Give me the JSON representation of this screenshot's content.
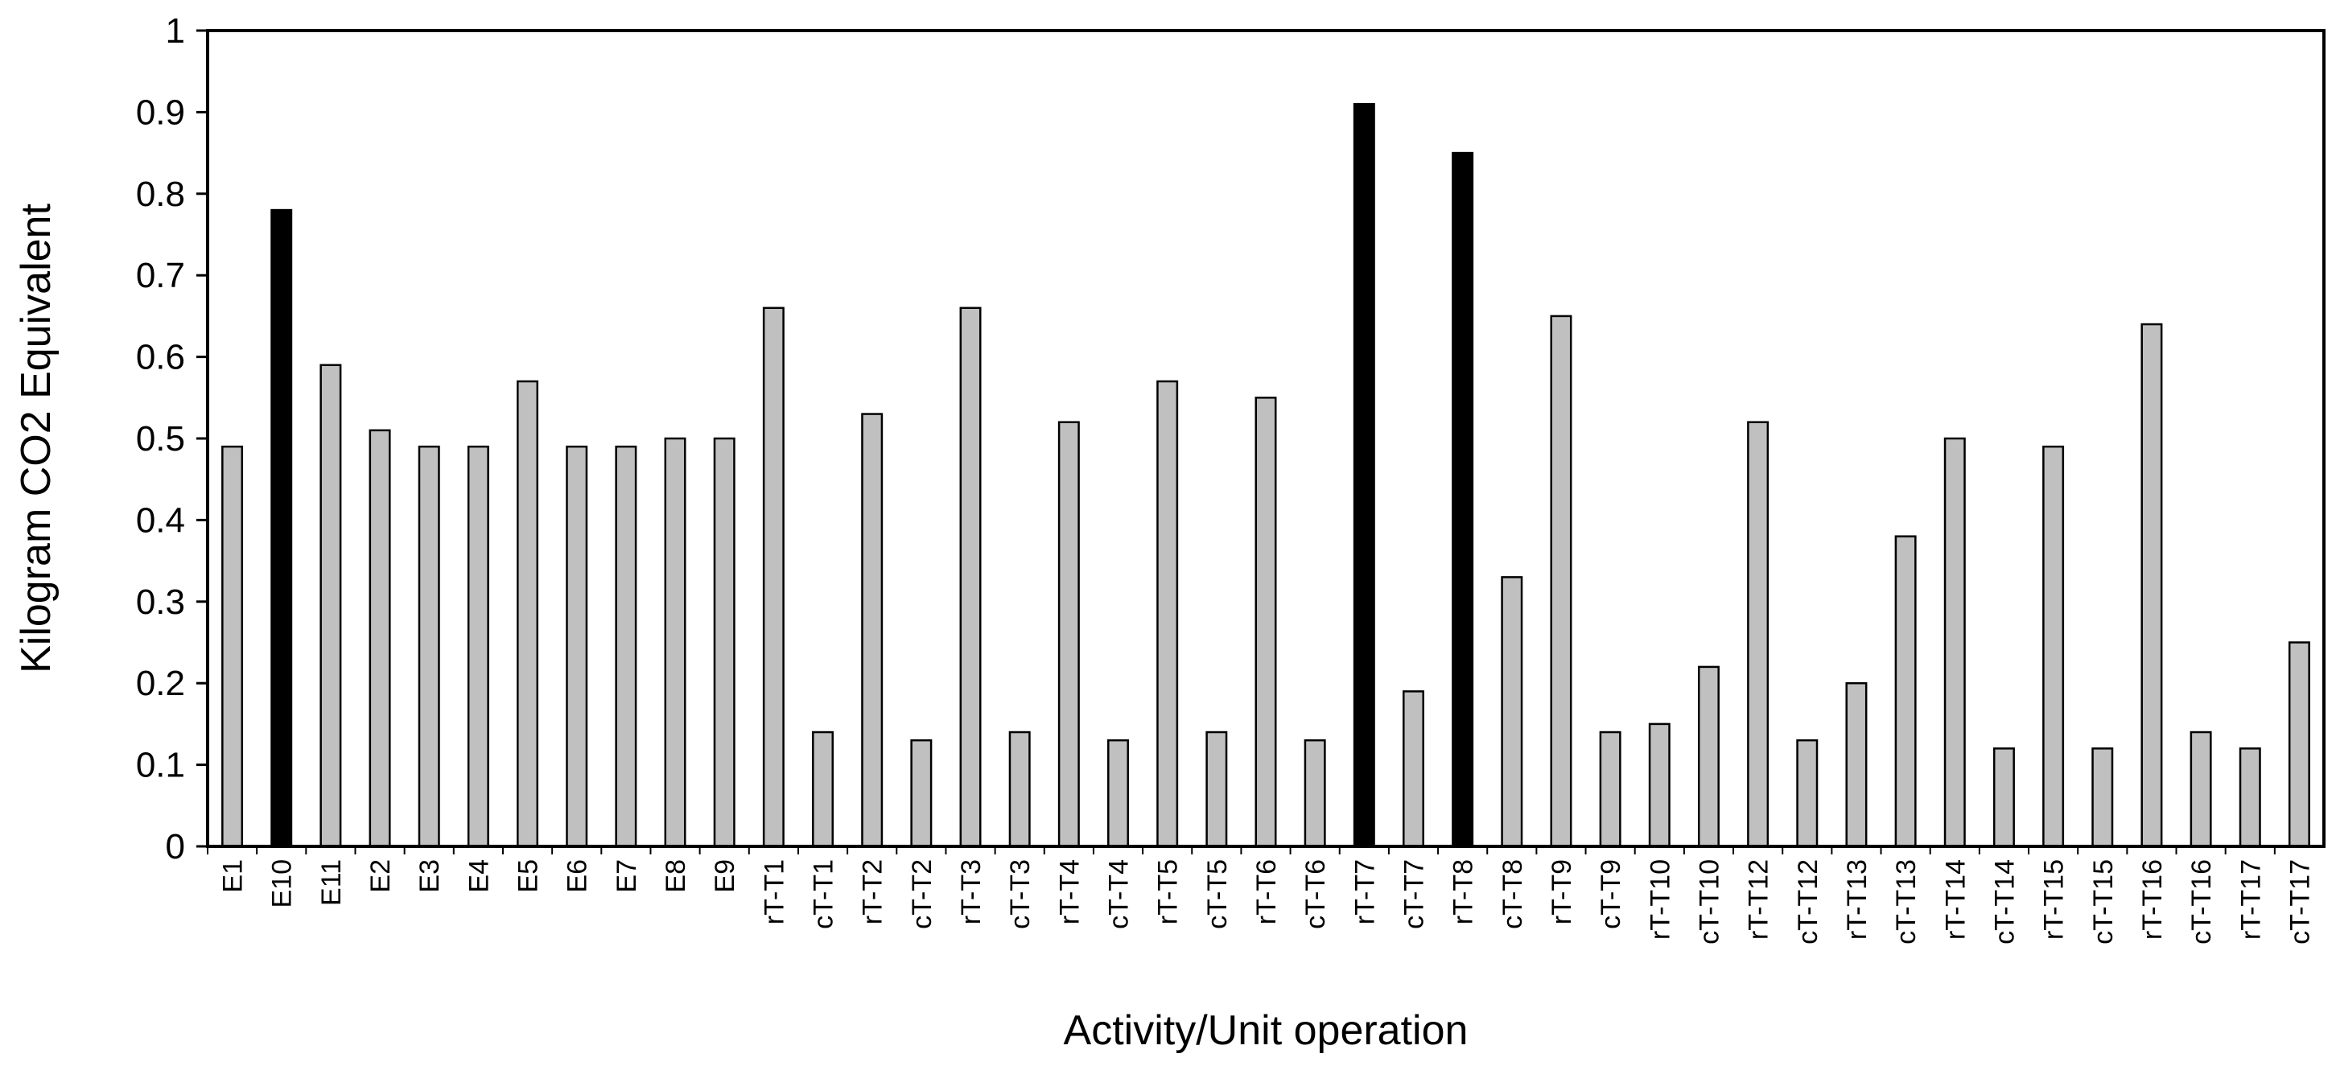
{
  "chart_data": {
    "type": "bar",
    "title": "",
    "xlabel": "Activity/Unit operation",
    "ylabel": "Kilogram CO2 Equivalent",
    "ylim": [
      0,
      1
    ],
    "yticks": [
      "0",
      "0.1",
      "0.2",
      "0.3",
      "0.4",
      "0.5",
      "0.6",
      "0.7",
      "0.8",
      "0.9",
      "1"
    ],
    "grid": false,
    "legend": "none",
    "colors": {
      "default": "#c0c0c0",
      "highlight": "#000000",
      "stroke": "#000000"
    },
    "categories": [
      "E1",
      "E10",
      "E11",
      "E2",
      "E3",
      "E4",
      "E5",
      "E6",
      "E7",
      "E8",
      "E9",
      "rT-T1",
      "cT-T1",
      "rT-T2",
      "cT-T2",
      "rT-T3",
      "cT-T3",
      "rT-T4",
      "cT-T4",
      "rT-T5",
      "cT-T5",
      "rT-T6",
      "cT-T6",
      "rT-T7",
      "cT-T7",
      "rT-T8",
      "cT-T8",
      "rT-T9",
      "cT-T9",
      "rT-T10",
      "cT-T10",
      "rT-T12",
      "cT-T12",
      "rT-T13",
      "cT-T13",
      "rT-T14",
      "cT-T14",
      "rT-T15",
      "cT-T15",
      "rT-T16",
      "cT-T16",
      "rT-T17",
      "cT-T17"
    ],
    "values": [
      0.49,
      0.78,
      0.59,
      0.51,
      0.49,
      0.49,
      0.57,
      0.49,
      0.49,
      0.5,
      0.5,
      0.66,
      0.14,
      0.53,
      0.13,
      0.66,
      0.14,
      0.52,
      0.13,
      0.57,
      0.14,
      0.55,
      0.13,
      0.91,
      0.19,
      0.85,
      0.33,
      0.65,
      0.14,
      0.15,
      0.22,
      0.52,
      0.13,
      0.2,
      0.38,
      0.5,
      0.12,
      0.49,
      0.12,
      0.64,
      0.14,
      0.12,
      0.25
    ],
    "highlighted": [
      "E10",
      "rT-T7",
      "rT-T8"
    ]
  }
}
